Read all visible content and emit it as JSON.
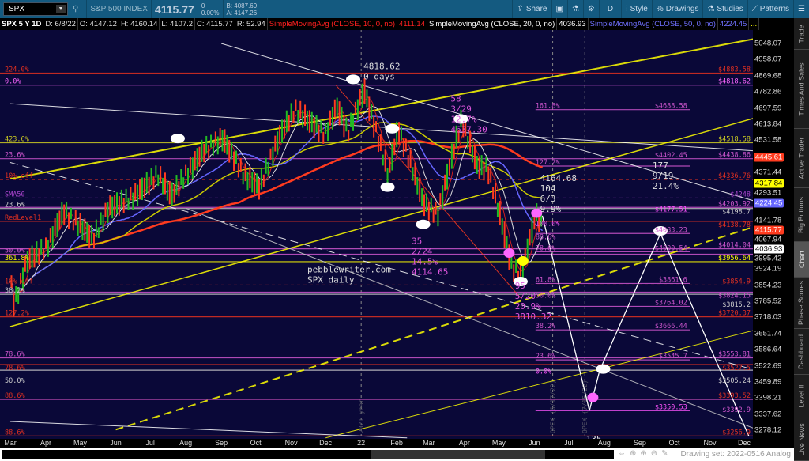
{
  "toolbar": {
    "symbol": "SPX",
    "description": "S&P 500 INDEX",
    "last": "4115.77",
    "change": "0",
    "change_pct": "0.00%",
    "bid": "B: 4087.69",
    "ask": "A: 4147.26",
    "share": "Share",
    "period": "D",
    "style": "Style",
    "drawings": "Drawings",
    "studies": "Studies",
    "patterns": "Patterns"
  },
  "studybar": {
    "title": "SPX 5 Y 1D",
    "date": "D: 6/8/22",
    "open": "O: 4147.12",
    "high": "H: 4160.14",
    "low": "L: 4107.2",
    "close": "C: 4115.77",
    "range": "R: 52.94",
    "sma10": "SimpleMovingAvg (CLOSE, 10, 0, no)",
    "sma10_val": "4111.14",
    "sma20": "SimpleMovingAvg (CLOSE, 20, 0, no)",
    "sma20_val": "4036.93",
    "sma50": "SimpleMovingAvg (CLOSE, 50, 0, no)",
    "sma50_val": "4224.45",
    "more": "..."
  },
  "side_tabs": [
    "Trade",
    "Times And Sales",
    "Active Trader",
    "Big Buttons",
    "Chart",
    "Phase Scores",
    "Dashboard",
    "Level II",
    "Live News"
  ],
  "footer": {
    "drawing_set": "Drawing set: 2022-0516 Analog"
  },
  "chart_data": {
    "type": "line",
    "title": "SPX 5 Y 1D",
    "scale": "log",
    "ylim": [
      3250,
      5100
    ],
    "y_ticks": [
      5048.07,
      4958.07,
      4869.68,
      4782.86,
      4697.59,
      4613.84,
      4531.58,
      4371.44,
      4293.51,
      4141.78,
      4067.94,
      3995.42,
      3924.19,
      3854.23,
      3785.52,
      3718.03,
      3651.74,
      3586.64,
      3522.69,
      3459.89,
      3398.21,
      3337.62,
      3278.12
    ],
    "x_ticks": [
      "Mar",
      "Apr",
      "May",
      "Jun",
      "Jul",
      "Aug",
      "Sep",
      "Oct",
      "Nov",
      "Dec",
      "22",
      "Feb",
      "Mar",
      "Apr",
      "May",
      "Jun",
      "Jul",
      "Aug",
      "Sep",
      "Oct",
      "Nov",
      "Dec"
    ],
    "price_tags": [
      {
        "value": "4445.61",
        "bg": "#ff3b1f",
        "fg": "#fff"
      },
      {
        "value": "4317.84",
        "bg": "#ffff00",
        "fg": "#000"
      },
      {
        "value": "4224.45",
        "bg": "#6666ff",
        "fg": "#fff"
      },
      {
        "value": "4115.77",
        "bg": "#ff3b1f",
        "fg": "#fff"
      },
      {
        "value": "4036.93",
        "bg": "#ffffff",
        "fg": "#000"
      }
    ],
    "price_series": [
      [
        "2021-03-01",
        3870
      ],
      [
        "2021-03-04",
        3770
      ],
      [
        "2021-03-15",
        3960
      ],
      [
        "2021-04-01",
        4020
      ],
      [
        "2021-04-16",
        4185
      ],
      [
        "2021-05-12",
        4060
      ],
      [
        "2021-05-25",
        4200
      ],
      [
        "2021-06-15",
        4250
      ],
      [
        "2021-07-07",
        4360
      ],
      [
        "2021-07-19",
        4260
      ],
      [
        "2021-08-16",
        4480
      ],
      [
        "2021-09-02",
        4540
      ],
      [
        "2021-09-20",
        4360
      ],
      [
        "2021-10-04",
        4300
      ],
      [
        "2021-10-21",
        4550
      ],
      [
        "2021-11-04",
        4690
      ],
      [
        "2021-11-30",
        4560
      ],
      [
        "2021-12-10",
        4710
      ],
      [
        "2021-12-20",
        4570
      ],
      [
        "2022-01-03",
        4796
      ],
      [
        "2022-01-24",
        4360
      ],
      [
        "2022-02-02",
        4590
      ],
      [
        "2022-02-24",
        4225
      ],
      [
        "2022-03-08",
        4170
      ],
      [
        "2022-03-29",
        4630
      ],
      [
        "2022-04-12",
        4400
      ],
      [
        "2022-04-21",
        4390
      ],
      [
        "2022-05-02",
        4155
      ],
      [
        "2022-05-12",
        3930
      ],
      [
        "2022-05-20",
        3900
      ],
      [
        "2022-06-02",
        4176
      ],
      [
        "2022-06-08",
        4115.77
      ]
    ],
    "projection": [
      [
        "2022-06-08",
        4164.68
      ],
      [
        "2022-07-19",
        3350.53
      ],
      [
        "2022-07-28",
        3505
      ],
      [
        "2022-09-19",
        4083.23
      ],
      [
        "2022-12-05",
        3256.9
      ]
    ],
    "levels": [
      {
        "price": 4883.58,
        "left": "224.0%",
        "right": "$4883.58",
        "color": "#e03020"
      },
      {
        "price": 4818.62,
        "left": "0.0%",
        "right": "$4818.62",
        "color": "#ff66ff"
      },
      {
        "price": 4688.58,
        "left": "161.8%",
        "right": "$4688.58",
        "color": "#cc55cc",
        "mid": true
      },
      {
        "price": 4518.58,
        "left": "423.6%",
        "right": "$4518.58",
        "color": "#cccc22"
      },
      {
        "price": 4438.86,
        "left": "23.6%",
        "right": "$4438.86",
        "color": "#cc55cc"
      },
      {
        "price": 4402.45,
        "left": "127.2%",
        "right": "$4402.45",
        "color": "#cc55cc",
        "mid": true
      },
      {
        "price": 4336.76,
        "left": "10% off",
        "right": "$4336.76",
        "color": "#e03020",
        "dash": true
      },
      {
        "price": 4248,
        "left": "SMA50",
        "right": "$4248",
        "color": "#aa44cc",
        "dash": true
      },
      {
        "price": 4203.92,
        "left": "",
        "right": "$4203.92",
        "color": "#cc55cc"
      },
      {
        "price": 4198.7,
        "left": "23.6%",
        "right": "$4198.7",
        "color": "#cccccc"
      },
      {
        "price": 4177.51,
        "left": "100.0%",
        "right": "$4177.51",
        "color": "#ff55ff",
        "mid": true
      },
      {
        "price": 4138.78,
        "left": "RedLevel1",
        "right": "$4138.78",
        "color": "#e03020"
      },
      {
        "price": 4083.23,
        "left": "88.6%",
        "right": "$4083.23",
        "color": "#cc55cc",
        "mid": true
      },
      {
        "price": 4014.04,
        "left": "",
        "right": "$4014.04",
        "color": "#cc55cc"
      },
      {
        "price": 4000.54,
        "left": "78.6%",
        "right": "$4000.54",
        "color": "#cc55cc",
        "mid": true
      },
      {
        "price": 3990,
        "left": "50.0%",
        "right": "",
        "color": "#cc55cc"
      },
      {
        "price": 3956.64,
        "left": "361.8%",
        "right": "$3956.64",
        "color": "#ffff00"
      },
      {
        "price": 3861.6,
        "left": "61.8%",
        "right": "$3861.6",
        "color": "#cc55cc",
        "mid": true
      },
      {
        "price": 3854.9,
        "left": "10% off",
        "right": "$3854.9",
        "color": "#e03020",
        "dash": true
      },
      {
        "price": 3824.15,
        "left": "",
        "right": "$3824.15",
        "color": "#cc55cc"
      },
      {
        "price": 3815.2,
        "left": "38.2%",
        "right": "$3815.2",
        "color": "#cccccc"
      },
      {
        "price": 3764.02,
        "left": "50.0%",
        "right": "$3764.02",
        "color": "#cc55cc",
        "mid": true
      },
      {
        "price": 3720.37,
        "left": "127.2%",
        "right": "$3720.37",
        "color": "#e03020"
      },
      {
        "price": 3666.44,
        "left": "38.2%",
        "right": "$3666.44",
        "color": "#cc55cc",
        "mid": true
      },
      {
        "price": 3553.81,
        "left": "78.6%",
        "right": "$3553.81",
        "color": "#cc55cc"
      },
      {
        "price": 3545.7,
        "left": "23.6%",
        "right": "$3545.7",
        "color": "#cc55cc",
        "mid": true
      },
      {
        "price": 3527.5,
        "left": "78.6%",
        "right": "$3527.5",
        "color": "#e03020"
      },
      {
        "price": 3505.24,
        "left": "50.0%",
        "right": "$3505.24",
        "color": "#cccccc"
      },
      {
        "price": 3393.52,
        "left": "88.6%",
        "right": "$3393.52",
        "color": "#e03020"
      },
      {
        "price": 3392.9,
        "left": "",
        "right": "$3392.9",
        "color": "#cc55cc"
      },
      {
        "price": 3350.53,
        "left": "0.0%",
        "right": "$3350.53",
        "color": "#ff55ff",
        "mid": true
      },
      {
        "price": 3256.9,
        "left": "88.6%",
        "right": "$3256.9",
        "color": "#e03020"
      }
    ],
    "trendlines": [
      {
        "from": [
          "2021-03-01",
          4720
        ],
        "to": [
          "2022-12-31",
          4470
        ],
        "color": "#ffffff"
      },
      {
        "from": [
          "2021-09-01",
          5048
        ],
        "to": [
          "2022-12-31",
          4200
        ],
        "color": "#ffffff"
      },
      {
        "from": [
          "2021-03-01",
          4420
        ],
        "to": [
          "2022-12-31",
          3480
        ],
        "color": "#ffffff",
        "dash": true
      },
      {
        "from": [
          "2021-03-01",
          4340
        ],
        "to": [
          "2022-12-31",
          5100
        ],
        "color": "#ffff00",
        "width": 2
      },
      {
        "from": [
          "2021-03-01",
          3680
        ],
        "to": [
          "2022-12-31",
          4680
        ],
        "color": "#ffff00",
        "width": 1.5
      },
      {
        "from": [
          "2021-06-01",
          3280
        ],
        "to": [
          "2022-12-31",
          4150
        ],
        "color": "#ffff00",
        "width": 2,
        "dash": true
      },
      {
        "from": [
          "2021-12-01",
          3250
        ],
        "to": [
          "2022-12-31",
          3690
        ],
        "color": "#ffff00"
      },
      {
        "from": [
          "2021-03-01",
          3310
        ],
        "to": [
          "2022-02-10",
          3250
        ],
        "color": "#ffffff"
      },
      {
        "from": [
          "2021-08-01",
          4200
        ],
        "to": [
          "2022-12-31",
          3250
        ],
        "color": "#cccccc"
      },
      {
        "from": [
          "2021-12-10",
          4818
        ],
        "to": [
          "2022-05-20",
          3800
        ],
        "color": "#ff3b1f"
      }
    ],
    "annotations": [
      {
        "date": "2022-01-03",
        "price": 4905,
        "lines": [
          "4818.62",
          " 0 days"
        ],
        "color": "#dddddd"
      },
      {
        "date": "2022-03-20",
        "price": 4730,
        "lines": [
          "58",
          "3/29",
          "12.7%",
          "4637.30"
        ],
        "color": "#dd55dd"
      },
      {
        "date": "2022-06-06",
        "price": 4330,
        "lines": [
          "4164.68",
          "104",
          "6/3",
          "9.9%"
        ],
        "color": "#dddddd"
      },
      {
        "date": "2022-09-12",
        "price": 4390,
        "lines": [
          "177",
          "9/19",
          "21.4%"
        ],
        "color": "#dddddd"
      },
      {
        "date": "2022-02-14",
        "price": 4035,
        "lines": [
          "35",
          "2/24",
          "14.5%",
          "4114.65"
        ],
        "color": "#dd55dd"
      },
      {
        "date": "2022-05-15",
        "price": 3840,
        "lines": [
          "95",
          "5/20",
          "20.9%",
          "3810.32"
        ],
        "color": "#dd55dd"
      },
      {
        "date": "2022-07-16",
        "price": 3340,
        "lines": [
          "135",
          "7/19",
          "30.4%"
        ],
        "color": "#dddddd"
      },
      {
        "date": "2021-11-15",
        "price": 3910,
        "lines": [
          "pebblewriter.com",
          "  SPX daily"
        ],
        "color": "#dddddd"
      }
    ],
    "vertical_markers": [
      {
        "date": "2022-01-01",
        "label": "2021 year"
      },
      {
        "date": "2022-06-17",
        "label": "OPEX (6/17/22)"
      },
      {
        "date": "2022-07-15",
        "label": "OPEX (7/15/22)"
      }
    ],
    "markers": [
      {
        "date": "2021-07-25",
        "price": 4540,
        "color": "#ffffff"
      },
      {
        "date": "2021-12-25",
        "price": 4850,
        "color": "#ffffff"
      },
      {
        "date": "2022-01-28",
        "price": 4590,
        "color": "#ffffff"
      },
      {
        "date": "2022-01-24",
        "price": 4300,
        "color": "#ffffff"
      },
      {
        "date": "2022-02-24",
        "price": 4125,
        "color": "#ffffff"
      },
      {
        "date": "2022-03-29",
        "price": 4640,
        "color": "#ffffff"
      },
      {
        "date": "2022-05-10",
        "price": 3995,
        "color": "#ff66ff"
      },
      {
        "date": "2022-05-22",
        "price": 3960,
        "color": "#ffff00"
      },
      {
        "date": "2022-05-20",
        "price": 3870,
        "color": "#ffffff"
      },
      {
        "date": "2022-06-03",
        "price": 4177,
        "color": "#ff66ff"
      },
      {
        "date": "2022-09-19",
        "price": 4095,
        "color": "#ffffff"
      },
      {
        "date": "2022-07-31",
        "price": 3510,
        "color": "#ffffff"
      },
      {
        "date": "2022-07-22",
        "price": 3400,
        "color": "#ff66ff"
      }
    ]
  }
}
